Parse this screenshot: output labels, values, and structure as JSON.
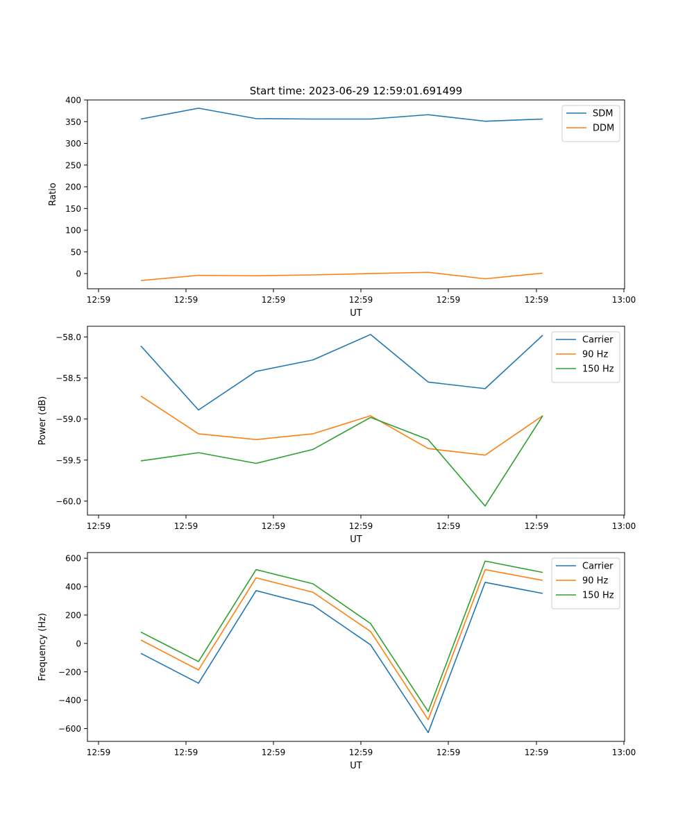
{
  "figure_title": "Start time: 2023-06-29 12:59:01.691499",
  "colors": {
    "blue": "#1f77b4",
    "orange": "#ff7f0e",
    "green": "#2ca02c"
  },
  "chart_data": [
    {
      "type": "line",
      "title": "Start time: 2023-06-29 12:59:01.691499",
      "xlabel": "UT",
      "ylabel": "Ratio",
      "x_tick_labels": [
        "12:59",
        "12:59",
        "12:59",
        "12:59",
        "12:59",
        "12:59",
        "13:00"
      ],
      "ylim": [
        -35,
        400
      ],
      "y_ticks": [
        0,
        50,
        100,
        150,
        200,
        250,
        300,
        350,
        400
      ],
      "y_tick_labels": [
        "0",
        "50",
        "100",
        "150",
        "200",
        "250",
        "300",
        "350",
        "400"
      ],
      "legend_position": "top-right",
      "grid": false,
      "series": [
        {
          "name": "SDM",
          "color": "#1f77b4",
          "values": [
            356,
            381,
            357,
            356,
            356,
            366,
            351,
            356
          ]
        },
        {
          "name": "DDM",
          "color": "#ff7f0e",
          "values": [
            -16,
            -4,
            -5,
            -3,
            0,
            3,
            -12,
            1
          ]
        }
      ]
    },
    {
      "type": "line",
      "xlabel": "UT",
      "ylabel": "Power (dB)",
      "x_tick_labels": [
        "12:59",
        "12:59",
        "12:59",
        "12:59",
        "12:59",
        "12:59",
        "13:00"
      ],
      "ylim": [
        -60.17,
        -57.87
      ],
      "y_ticks": [
        -60.0,
        -59.5,
        -59.0,
        -58.5,
        -58.0
      ],
      "y_tick_labels": [
        "−60.0",
        "−59.5",
        "−59.0",
        "−58.5",
        "−58.0"
      ],
      "legend_position": "top-right",
      "grid": false,
      "series": [
        {
          "name": "Carrier",
          "color": "#1f77b4",
          "values": [
            -58.11,
            -58.89,
            -58.42,
            -58.28,
            -57.97,
            -58.55,
            -58.63,
            -57.98
          ]
        },
        {
          "name": "90 Hz",
          "color": "#ff7f0e",
          "values": [
            -58.72,
            -59.18,
            -59.25,
            -59.18,
            -58.96,
            -59.36,
            -59.44,
            -58.96
          ]
        },
        {
          "name": "150 Hz",
          "color": "#2ca02c",
          "values": [
            -59.51,
            -59.41,
            -59.54,
            -59.37,
            -58.98,
            -59.25,
            -60.06,
            -58.96
          ]
        }
      ]
    },
    {
      "type": "line",
      "xlabel": "UT",
      "ylabel": "Frequency (Hz)",
      "x_tick_labels": [
        "12:59",
        "12:59",
        "12:59",
        "12:59",
        "12:59",
        "12:59",
        "13:00"
      ],
      "ylim": [
        -690,
        640
      ],
      "y_ticks": [
        -600,
        -400,
        -200,
        0,
        200,
        400,
        600
      ],
      "y_tick_labels": [
        "−600",
        "−400",
        "−200",
        "0",
        "200",
        "400",
        "600"
      ],
      "legend_position": "top-right",
      "grid": false,
      "series": [
        {
          "name": "Carrier",
          "color": "#1f77b4",
          "values": [
            -70,
            -280,
            372,
            268,
            -10,
            -628,
            430,
            352
          ]
        },
        {
          "name": "90 Hz",
          "color": "#ff7f0e",
          "values": [
            24,
            -187,
            462,
            360,
            84,
            -537,
            520,
            444
          ]
        },
        {
          "name": "150 Hz",
          "color": "#2ca02c",
          "values": [
            80,
            -128,
            520,
            420,
            140,
            -480,
            580,
            500
          ]
        }
      ]
    }
  ]
}
